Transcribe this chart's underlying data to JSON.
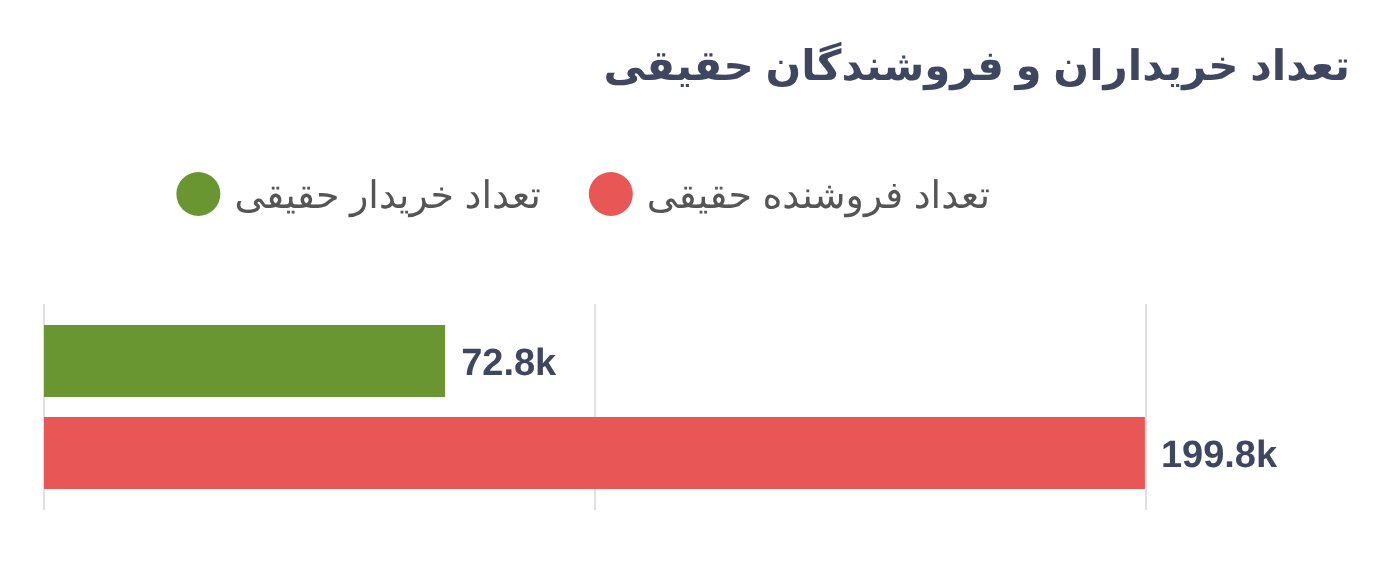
{
  "chart_data": {
    "type": "bar",
    "orientation": "horizontal",
    "title": "تعداد خریداران و فروشندگان حقیقی",
    "categories": [
      null
    ],
    "series": [
      {
        "name": "تعداد خریدار حقیقی",
        "color": "#6a9632",
        "values": [
          72800
        ],
        "value_labels": [
          "72.8k"
        ]
      },
      {
        "name": "تعداد فروشنده حقیقی",
        "color": "#e85656",
        "values": [
          199800
        ],
        "value_labels": [
          "199.8k"
        ]
      }
    ],
    "xlim": [
      0,
      200000
    ],
    "xticks": [
      {
        "value": 0,
        "label": null
      },
      {
        "value": 100000,
        "label": null
      },
      {
        "value": 200000,
        "label": null
      }
    ],
    "grid": "x",
    "legend": "top"
  }
}
